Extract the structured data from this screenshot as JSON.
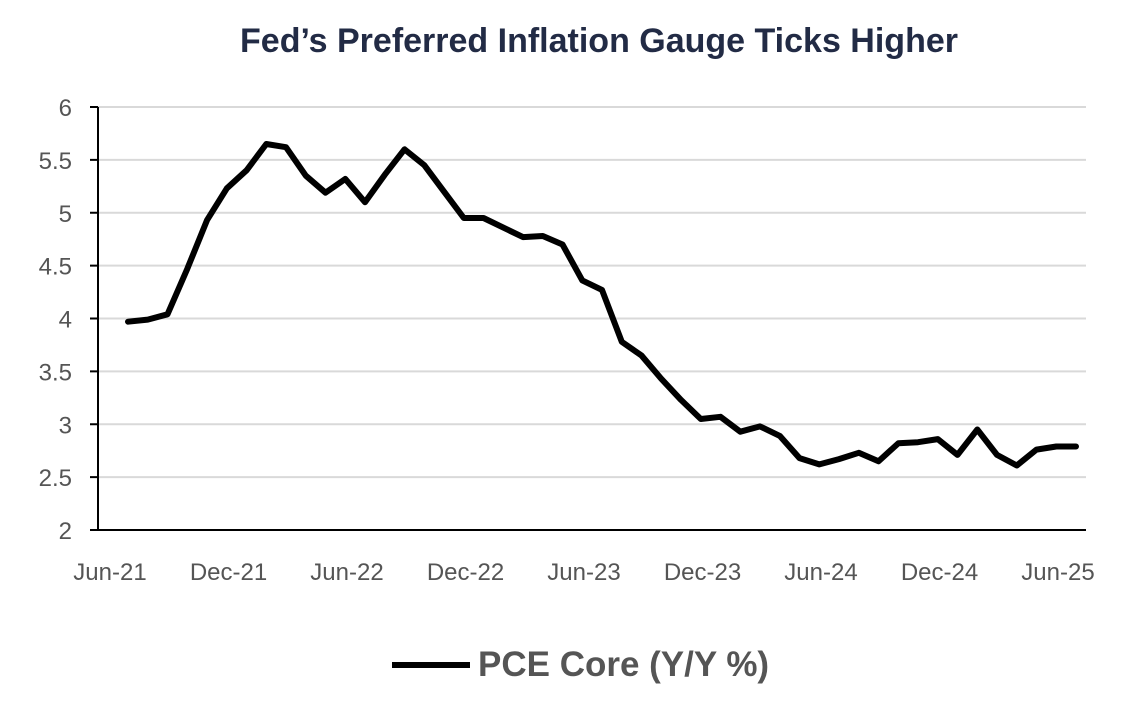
{
  "title": "Fed’s Preferred Inflation Gauge Ticks Higher",
  "chart_data": {
    "type": "line",
    "title": "Fed’s Preferred Inflation Gauge Ticks Higher",
    "xlabel": "",
    "ylabel": "",
    "ylim": [
      2,
      6
    ],
    "y_ticks": [
      "6",
      "5.5",
      "5",
      "4.5",
      "4",
      "3.5",
      "3",
      "2.5",
      "2"
    ],
    "x_ticks": [
      "Jun-21",
      "Dec-21",
      "Jun-22",
      "Dec-22",
      "Jun-23",
      "Dec-23",
      "Jun-24",
      "Dec-24",
      "Jun-25"
    ],
    "grid": true,
    "legend_position": "bottom",
    "x": [
      "Jun-21",
      "Jul-21",
      "Aug-21",
      "Sep-21",
      "Oct-21",
      "Nov-21",
      "Dec-21",
      "Jan-22",
      "Feb-22",
      "Mar-22",
      "Apr-22",
      "May-22",
      "Jun-22",
      "Jul-22",
      "Aug-22",
      "Sep-22",
      "Oct-22",
      "Nov-22",
      "Dec-22",
      "Jan-23",
      "Feb-23",
      "Mar-23",
      "Apr-23",
      "May-23",
      "Jun-23",
      "Jul-23",
      "Aug-23",
      "Sep-23",
      "Oct-23",
      "Nov-23",
      "Dec-23",
      "Jan-24",
      "Feb-24",
      "Mar-24",
      "Apr-24",
      "May-24",
      "Jun-24",
      "Jul-24",
      "Aug-24",
      "Sep-24",
      "Oct-24",
      "Nov-24",
      "Dec-24",
      "Jan-25",
      "Feb-25",
      "Mar-25",
      "Apr-25",
      "May-25",
      "Jun-25"
    ],
    "series": [
      {
        "name": "PCE Core (Y/Y %)",
        "color": "#000000",
        "values": [
          3.97,
          3.99,
          4.04,
          4.47,
          4.93,
          5.23,
          5.4,
          5.65,
          5.62,
          5.35,
          5.19,
          5.32,
          5.1,
          5.36,
          5.6,
          5.45,
          5.2,
          4.95,
          4.95,
          4.86,
          4.77,
          4.78,
          4.7,
          4.36,
          4.27,
          3.78,
          3.65,
          3.43,
          3.23,
          3.05,
          3.07,
          2.93,
          2.98,
          2.89,
          2.68,
          2.62,
          2.67,
          2.73,
          2.65,
          2.82,
          2.83,
          2.86,
          2.71,
          2.95,
          2.71,
          2.61,
          2.76,
          2.79,
          2.79
        ]
      }
    ]
  }
}
